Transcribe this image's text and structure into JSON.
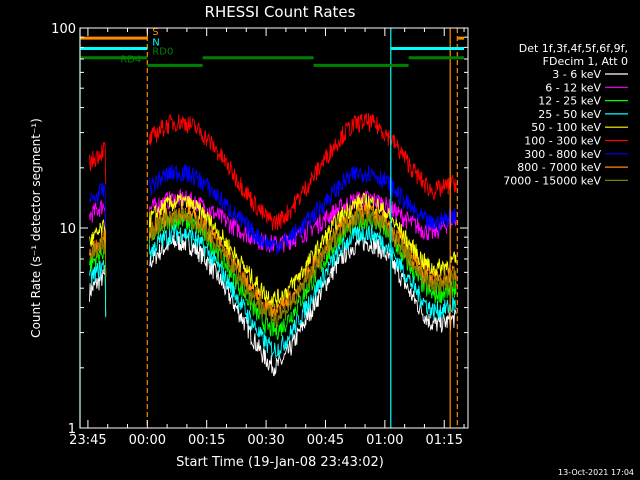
{
  "chart_data": {
    "type": "line",
    "title": "RHESSI Count Rates",
    "xlabel": "Start Time (19-Jan-08 23:43:02)",
    "ylabel": "Count Rate (s⁻¹ detector segment⁻¹)",
    "yscale": "log",
    "ylim": [
      1,
      100
    ],
    "xlim_minutes": [
      -17,
      81
    ],
    "x_ticks": [
      {
        "label": "23:45",
        "t": -15
      },
      {
        "label": "00:00",
        "t": 0
      },
      {
        "label": "00:15",
        "t": 15
      },
      {
        "label": "00:30",
        "t": 30
      },
      {
        "label": "00:45",
        "t": 45
      },
      {
        "label": "01:00",
        "t": 60
      },
      {
        "label": "01:15",
        "t": 75
      }
    ],
    "y_ticks": [
      {
        "label": "1",
        "v": 1
      },
      {
        "label": "10",
        "v": 10
      },
      {
        "label": "100",
        "v": 100
      }
    ],
    "legend_header": [
      "Det 1f,3f,4f,5f,6f,9f,",
      "FDecim 1, Att 0"
    ],
    "legend_position": "right",
    "series": [
      {
        "name": "3 - 6 keV",
        "color": "#ffffff",
        "peak_amp": 8.5,
        "trough_amp": 2.8
      },
      {
        "name": "6 - 12 keV",
        "color": "#ff00ff",
        "peak_amp": 14.0,
        "trough_amp": 9.0
      },
      {
        "name": "12 - 25 keV",
        "color": "#00ff00",
        "peak_amp": 11.0,
        "trough_amp": 4.0
      },
      {
        "name": "25 - 50 keV",
        "color": "#00ffff",
        "peak_amp": 9.5,
        "trough_amp": 3.3
      },
      {
        "name": "50 - 100 keV",
        "color": "#ffff00",
        "peak_amp": 13.5,
        "trough_amp": 5.5
      },
      {
        "name": "100 - 300 keV",
        "color": "#ff0000",
        "peak_amp": 34.0,
        "trough_amp": 13.5
      },
      {
        "name": "300 - 800 keV",
        "color": "#0000ff",
        "peak_amp": 19.0,
        "trough_amp": 9.5
      },
      {
        "name": "800 - 7000 keV",
        "color": "#ff8c00",
        "peak_amp": 12.0,
        "trough_amp": 4.8
      },
      {
        "name": "7000 - 15000 keV",
        "color": "#808000",
        "peak_amp": 11.5,
        "trough_amp": 4.5
      }
    ],
    "data_gap_minutes": [
      -10.5,
      0.5
    ],
    "peaks_minutes": [
      8,
      55
    ],
    "trough_minutes": 32,
    "vertical_lines": [
      {
        "t": -17,
        "color": "#00ffff",
        "style": "solid"
      },
      {
        "t": 0,
        "color": "#ff8c00",
        "style": "dashed"
      },
      {
        "t": 61.5,
        "color": "#00ffff",
        "style": "solid"
      },
      {
        "t": 76.5,
        "color": "#ff8c00",
        "style": "solid"
      },
      {
        "t": 78.3,
        "color": "#ff8c00",
        "style": "dashed"
      }
    ],
    "flag_bars": [
      {
        "label": "S",
        "color": "#ff8c00",
        "value": 89,
        "segments": [
          [
            -17,
            0
          ],
          [
            78.5,
            80
          ]
        ]
      },
      {
        "label": "N",
        "color": "#00ffff",
        "value": 79,
        "segments": [
          [
            -17,
            0
          ],
          [
            61.5,
            80
          ]
        ]
      },
      {
        "label": "RD0",
        "color": "#008000",
        "value": 71,
        "segments": [
          [
            -17,
            0
          ],
          [
            14,
            42
          ],
          [
            66,
            80
          ]
        ]
      },
      {
        "label": "RD4",
        "color": "#008000",
        "value": 65,
        "segments": [
          [
            0,
            14
          ],
          [
            42,
            66
          ]
        ]
      }
    ]
  },
  "timestamp": "13-Oct-2021 17:04"
}
